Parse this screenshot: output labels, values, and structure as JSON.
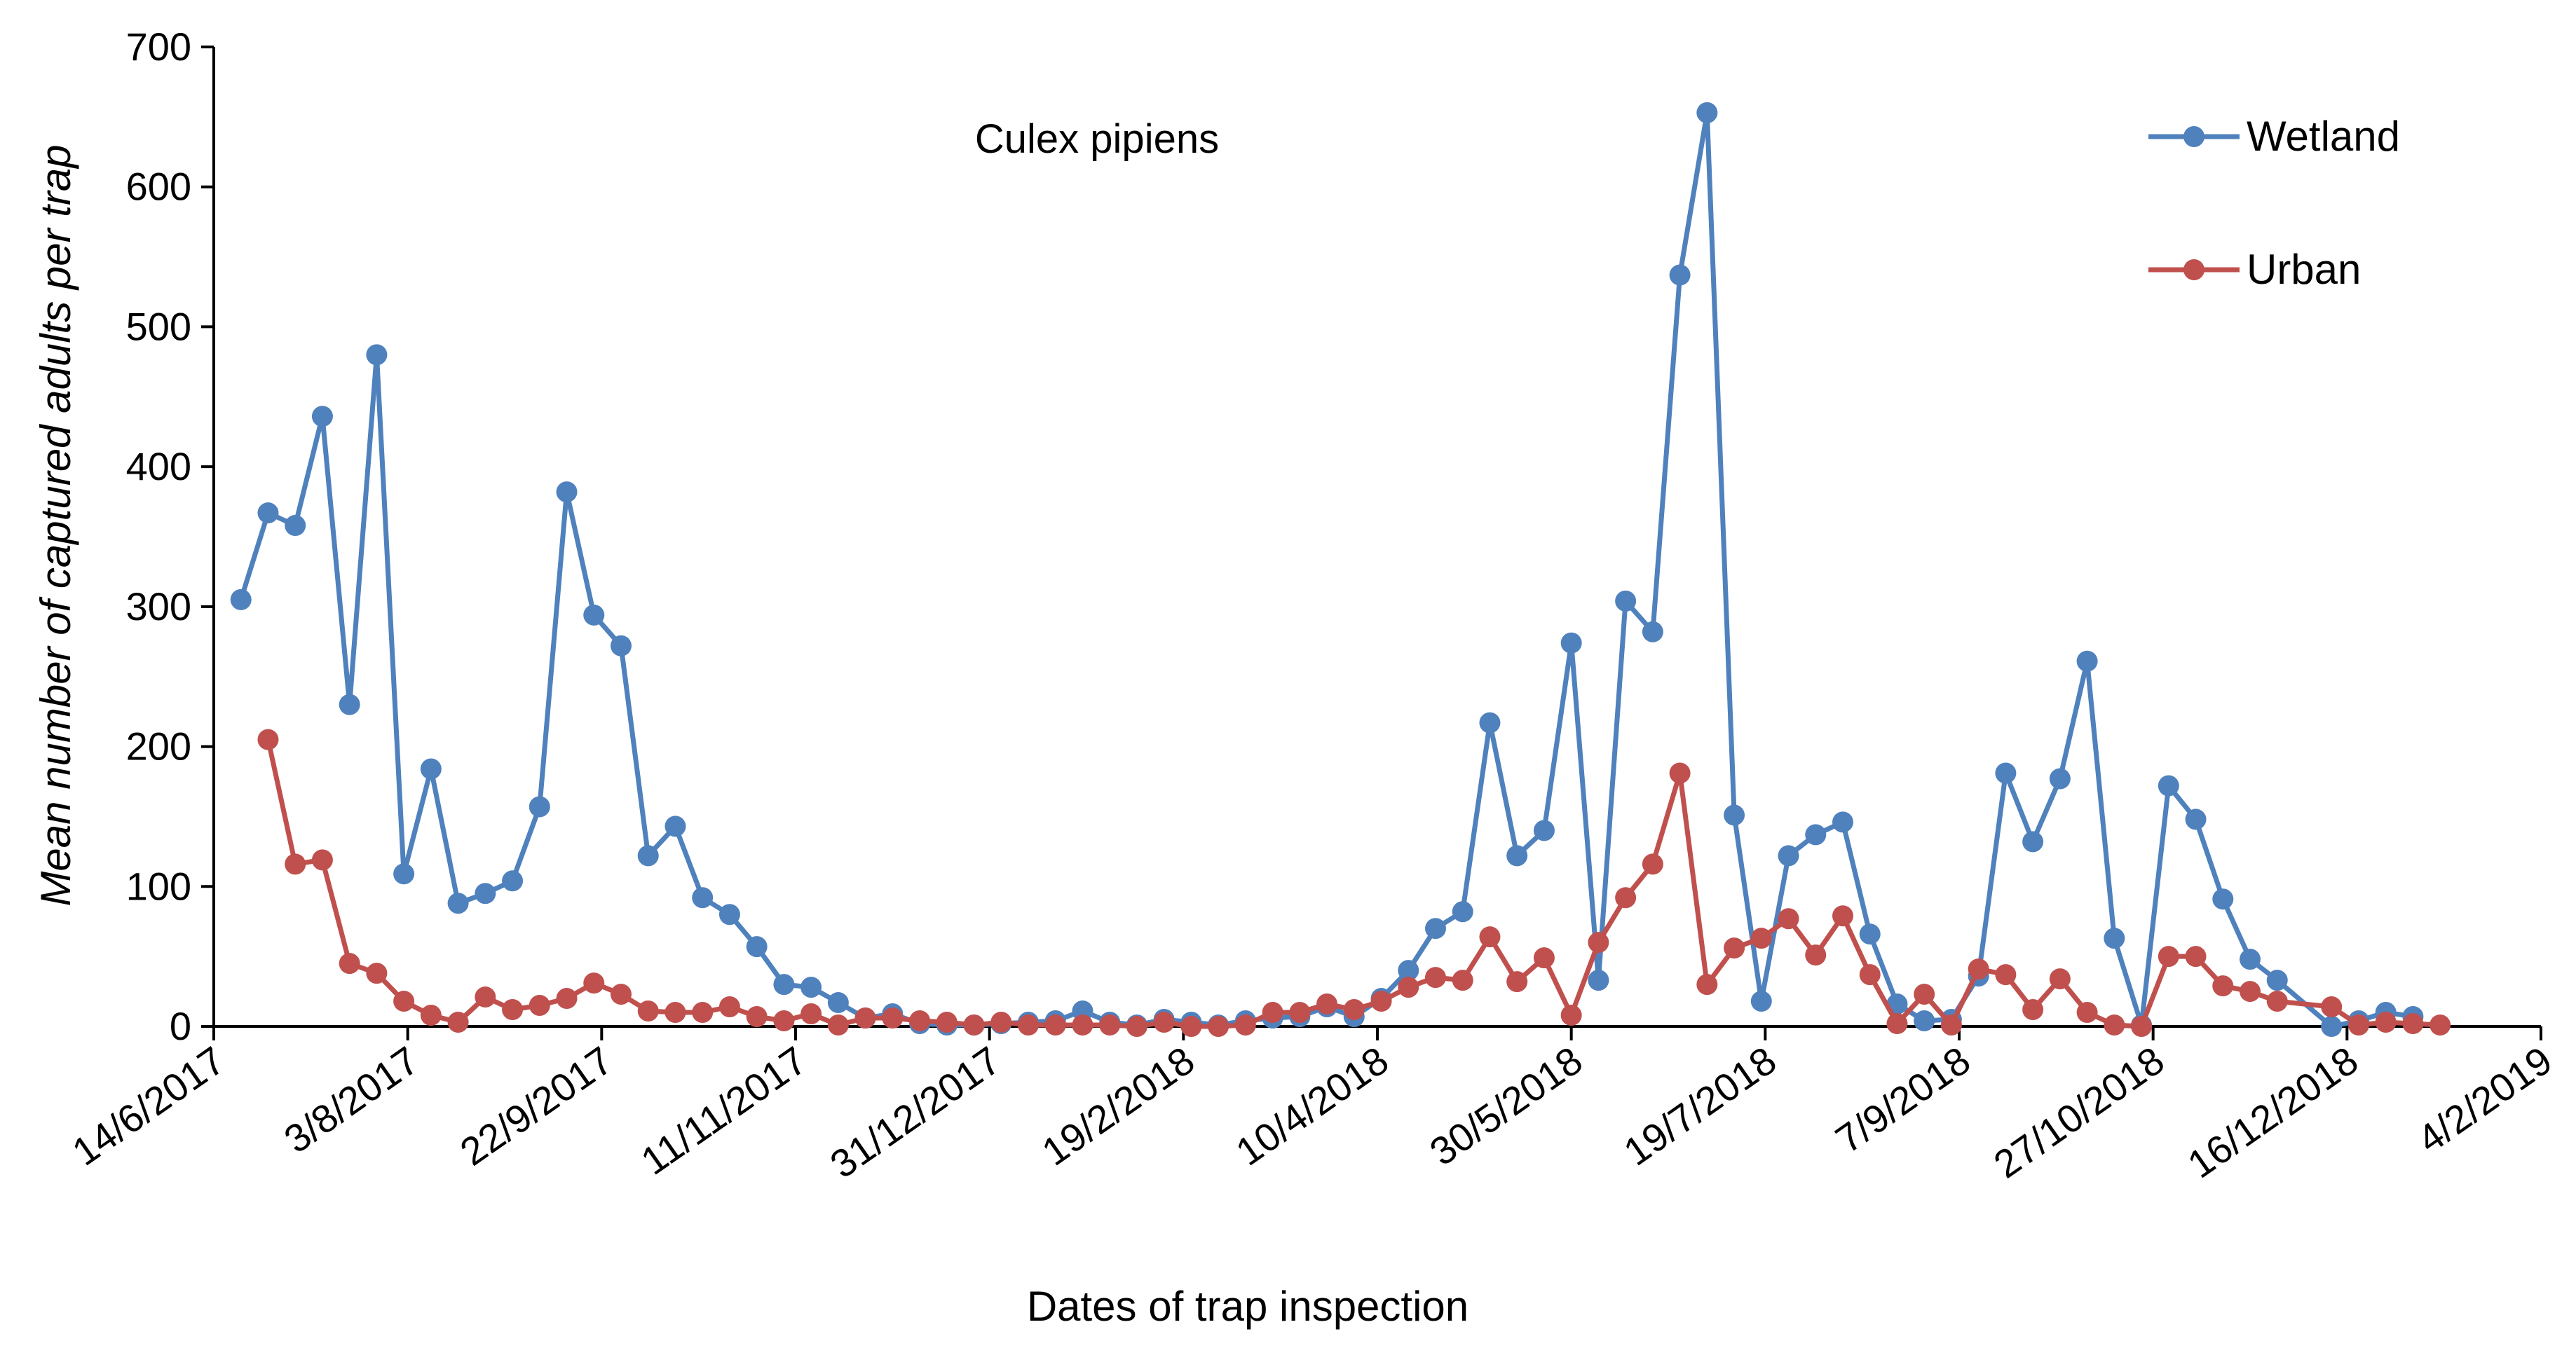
{
  "chart_data": {
    "type": "line",
    "title": "",
    "annotation": "Culex pipiens",
    "xlabel": "Dates of trap inspection",
    "ylabel": "Mean number of captured adults  per trap",
    "ylim": [
      0,
      700
    ],
    "y_ticks": [
      0,
      100,
      200,
      300,
      400,
      500,
      600,
      700
    ],
    "xlim_days": [
      0,
      600
    ],
    "x_tick_days": [
      0,
      50,
      100,
      150,
      200,
      250,
      300,
      350,
      400,
      450,
      500,
      550,
      600
    ],
    "x_tick_labels": [
      "14/6/2017",
      "3/8/2017",
      "22/9/2017",
      "11/11/2017",
      "31/12/2017",
      "19/2/2018",
      "10/4/2018",
      "30/5/2018",
      "19/7/2018",
      "7/9/2018",
      "27/10/2018",
      "16/12/2018",
      "4/2/2019"
    ],
    "x_unit": "days since 14/6/2017",
    "legend_position": "top-right",
    "series": [
      {
        "name": "Wetland",
        "color": "#4F81BD",
        "points": [
          [
            7,
            305
          ],
          [
            14,
            367
          ],
          [
            21,
            358
          ],
          [
            28,
            436
          ],
          [
            35,
            230
          ],
          [
            42,
            480
          ],
          [
            49,
            109
          ],
          [
            56,
            184
          ],
          [
            63,
            88
          ],
          [
            70,
            95
          ],
          [
            77,
            104
          ],
          [
            84,
            157
          ],
          [
            91,
            382
          ],
          [
            98,
            294
          ],
          [
            105,
            272
          ],
          [
            112,
            122
          ],
          [
            119,
            143
          ],
          [
            126,
            92
          ],
          [
            133,
            80
          ],
          [
            140,
            57
          ],
          [
            147,
            30
          ],
          [
            154,
            28
          ],
          [
            161,
            17
          ],
          [
            168,
            6
          ],
          [
            175,
            9
          ],
          [
            182,
            2
          ],
          [
            189,
            1
          ],
          [
            196,
            1
          ],
          [
            203,
            2
          ],
          [
            210,
            3
          ],
          [
            217,
            4
          ],
          [
            224,
            11
          ],
          [
            231,
            3
          ],
          [
            238,
            1
          ],
          [
            245,
            5
          ],
          [
            252,
            3
          ],
          [
            259,
            1
          ],
          [
            266,
            4
          ],
          [
            273,
            6
          ],
          [
            280,
            7
          ],
          [
            287,
            14
          ],
          [
            294,
            7
          ],
          [
            301,
            20
          ],
          [
            308,
            40
          ],
          [
            315,
            70
          ],
          [
            322,
            82
          ],
          [
            329,
            217
          ],
          [
            336,
            122
          ],
          [
            343,
            140
          ],
          [
            350,
            274
          ],
          [
            357,
            33
          ],
          [
            364,
            304
          ],
          [
            371,
            282
          ],
          [
            378,
            537
          ],
          [
            385,
            653
          ],
          [
            392,
            151
          ],
          [
            399,
            18
          ],
          [
            406,
            122
          ],
          [
            413,
            137
          ],
          [
            420,
            146
          ],
          [
            427,
            66
          ],
          [
            434,
            16
          ],
          [
            441,
            4
          ],
          [
            448,
            5
          ],
          [
            455,
            36
          ],
          [
            462,
            181
          ],
          [
            469,
            132
          ],
          [
            476,
            177
          ],
          [
            483,
            261
          ],
          [
            490,
            63
          ],
          [
            497,
            1
          ],
          [
            504,
            172
          ],
          [
            511,
            148
          ],
          [
            518,
            91
          ],
          [
            525,
            48
          ],
          [
            532,
            33
          ],
          [
            546,
            0
          ],
          [
            553,
            4
          ],
          [
            560,
            10
          ],
          [
            567,
            7
          ]
        ]
      },
      {
        "name": "Urban",
        "color": "#C0504D",
        "points": [
          [
            14,
            205
          ],
          [
            21,
            116
          ],
          [
            28,
            119
          ],
          [
            35,
            45
          ],
          [
            42,
            38
          ],
          [
            49,
            18
          ],
          [
            56,
            8
          ],
          [
            63,
            3
          ],
          [
            70,
            21
          ],
          [
            77,
            12
          ],
          [
            84,
            15
          ],
          [
            91,
            20
          ],
          [
            98,
            31
          ],
          [
            105,
            23
          ],
          [
            112,
            11
          ],
          [
            119,
            10
          ],
          [
            126,
            10
          ],
          [
            133,
            14
          ],
          [
            140,
            7
          ],
          [
            147,
            4
          ],
          [
            154,
            9
          ],
          [
            161,
            1
          ],
          [
            168,
            6
          ],
          [
            175,
            6
          ],
          [
            182,
            4
          ],
          [
            189,
            3
          ],
          [
            196,
            1
          ],
          [
            203,
            3
          ],
          [
            210,
            1
          ],
          [
            217,
            1
          ],
          [
            224,
            1
          ],
          [
            231,
            1
          ],
          [
            238,
            0
          ],
          [
            245,
            3
          ],
          [
            252,
            0
          ],
          [
            259,
            0
          ],
          [
            266,
            1
          ],
          [
            273,
            10
          ],
          [
            280,
            10
          ],
          [
            287,
            16
          ],
          [
            294,
            12
          ],
          [
            301,
            18
          ],
          [
            308,
            28
          ],
          [
            315,
            35
          ],
          [
            322,
            33
          ],
          [
            329,
            64
          ],
          [
            336,
            32
          ],
          [
            343,
            49
          ],
          [
            350,
            8
          ],
          [
            357,
            60
          ],
          [
            364,
            92
          ],
          [
            371,
            116
          ],
          [
            378,
            181
          ],
          [
            385,
            30
          ],
          [
            392,
            56
          ],
          [
            399,
            63
          ],
          [
            406,
            77
          ],
          [
            413,
            51
          ],
          [
            420,
            79
          ],
          [
            427,
            37
          ],
          [
            434,
            2
          ],
          [
            441,
            23
          ],
          [
            448,
            1
          ],
          [
            455,
            41
          ],
          [
            462,
            37
          ],
          [
            469,
            12
          ],
          [
            476,
            34
          ],
          [
            483,
            10
          ],
          [
            490,
            1
          ],
          [
            497,
            0
          ],
          [
            504,
            50
          ],
          [
            511,
            50
          ],
          [
            518,
            29
          ],
          [
            525,
            25
          ],
          [
            532,
            18
          ],
          [
            546,
            14
          ],
          [
            553,
            1
          ],
          [
            560,
            3
          ],
          [
            567,
            2
          ],
          [
            574,
            1
          ]
        ]
      }
    ]
  }
}
